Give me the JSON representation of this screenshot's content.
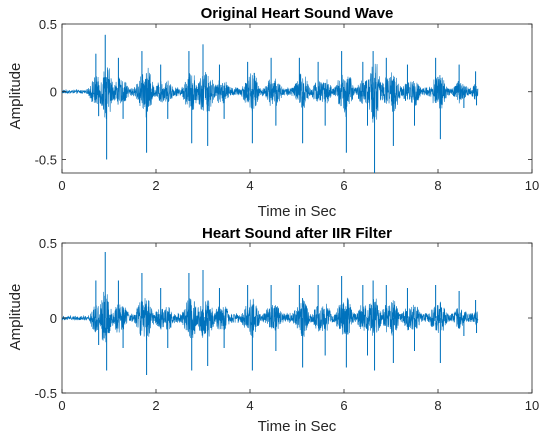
{
  "chart_data": [
    {
      "type": "line",
      "title": "Original Heart Sound Wave",
      "xlabel": "Time in Sec",
      "ylabel": "Amplitude",
      "xlim": [
        0,
        10
      ],
      "ylim": [
        -0.6,
        0.5
      ],
      "xticks": [
        0,
        2,
        4,
        6,
        8,
        10
      ],
      "xtick_labels": [
        "0",
        "2",
        "4",
        "6",
        "8",
        "10"
      ],
      "yticks": [
        -0.5,
        0,
        0.5
      ],
      "ytick_labels": [
        "-0.5",
        "0",
        "0.5"
      ],
      "grid": false,
      "line_color": "#0072BD",
      "signal_end_x": 8.85,
      "peaks": [
        {
          "x": 0.72,
          "y": 0.28
        },
        {
          "x": 0.78,
          "y": -0.18
        },
        {
          "x": 0.92,
          "y": 0.42
        },
        {
          "x": 0.95,
          "y": -0.5
        },
        {
          "x": 1.2,
          "y": 0.25
        },
        {
          "x": 1.3,
          "y": -0.2
        },
        {
          "x": 1.7,
          "y": 0.3
        },
        {
          "x": 1.8,
          "y": -0.45
        },
        {
          "x": 2.1,
          "y": 0.2
        },
        {
          "x": 2.25,
          "y": -0.2
        },
        {
          "x": 2.7,
          "y": 0.3
        },
        {
          "x": 2.76,
          "y": -0.38
        },
        {
          "x": 3.0,
          "y": 0.35
        },
        {
          "x": 3.1,
          "y": -0.4
        },
        {
          "x": 3.35,
          "y": 0.2
        },
        {
          "x": 3.45,
          "y": -0.2
        },
        {
          "x": 3.95,
          "y": 0.22
        },
        {
          "x": 4.05,
          "y": -0.38
        },
        {
          "x": 4.45,
          "y": 0.25
        },
        {
          "x": 4.55,
          "y": -0.25
        },
        {
          "x": 5.05,
          "y": 0.25
        },
        {
          "x": 5.12,
          "y": -0.38
        },
        {
          "x": 5.45,
          "y": 0.22
        },
        {
          "x": 5.6,
          "y": -0.25
        },
        {
          "x": 5.95,
          "y": 0.3
        },
        {
          "x": 6.05,
          "y": -0.45
        },
        {
          "x": 6.4,
          "y": 0.22
        },
        {
          "x": 6.5,
          "y": -0.25
        },
        {
          "x": 6.62,
          "y": 0.3
        },
        {
          "x": 6.65,
          "y": -0.6
        },
        {
          "x": 6.9,
          "y": 0.25
        },
        {
          "x": 7.05,
          "y": -0.4
        },
        {
          "x": 7.35,
          "y": 0.2
        },
        {
          "x": 7.5,
          "y": -0.25
        },
        {
          "x": 7.95,
          "y": 0.25
        },
        {
          "x": 8.05,
          "y": -0.35
        },
        {
          "x": 8.45,
          "y": 0.2
        },
        {
          "x": 8.55,
          "y": -0.12
        },
        {
          "x": 8.8,
          "y": 0.15
        },
        {
          "x": 8.82,
          "y": -0.1
        }
      ]
    },
    {
      "type": "line",
      "title": "Heart Sound after IIR Filter",
      "xlabel": "Time in Sec",
      "ylabel": "Amplitude",
      "xlim": [
        0,
        10
      ],
      "ylim": [
        -0.5,
        0.5
      ],
      "xticks": [
        0,
        2,
        4,
        6,
        8,
        10
      ],
      "xtick_labels": [
        "0",
        "2",
        "4",
        "6",
        "8",
        "10"
      ],
      "yticks": [
        -0.5,
        0,
        0.5
      ],
      "ytick_labels": [
        "-0.5",
        "0",
        "0.5"
      ],
      "grid": false,
      "line_color": "#0072BD",
      "signal_end_x": 8.85,
      "peaks": [
        {
          "x": 0.72,
          "y": 0.25
        },
        {
          "x": 0.78,
          "y": -0.18
        },
        {
          "x": 0.92,
          "y": 0.44
        },
        {
          "x": 0.95,
          "y": -0.35
        },
        {
          "x": 1.2,
          "y": 0.25
        },
        {
          "x": 1.3,
          "y": -0.2
        },
        {
          "x": 1.7,
          "y": 0.3
        },
        {
          "x": 1.8,
          "y": -0.38
        },
        {
          "x": 2.1,
          "y": 0.2
        },
        {
          "x": 2.25,
          "y": -0.2
        },
        {
          "x": 2.7,
          "y": 0.3
        },
        {
          "x": 2.76,
          "y": -0.35
        },
        {
          "x": 3.0,
          "y": 0.32
        },
        {
          "x": 3.1,
          "y": -0.32
        },
        {
          "x": 3.35,
          "y": 0.2
        },
        {
          "x": 3.45,
          "y": -0.2
        },
        {
          "x": 3.95,
          "y": 0.22
        },
        {
          "x": 4.05,
          "y": -0.35
        },
        {
          "x": 4.45,
          "y": 0.22
        },
        {
          "x": 4.55,
          "y": -0.22
        },
        {
          "x": 5.05,
          "y": 0.22
        },
        {
          "x": 5.12,
          "y": -0.33
        },
        {
          "x": 5.45,
          "y": 0.22
        },
        {
          "x": 5.6,
          "y": -0.25
        },
        {
          "x": 5.95,
          "y": 0.28
        },
        {
          "x": 6.05,
          "y": -0.33
        },
        {
          "x": 6.4,
          "y": 0.22
        },
        {
          "x": 6.5,
          "y": -0.25
        },
        {
          "x": 6.62,
          "y": 0.25
        },
        {
          "x": 6.65,
          "y": -0.35
        },
        {
          "x": 6.9,
          "y": 0.22
        },
        {
          "x": 7.05,
          "y": -0.3
        },
        {
          "x": 7.35,
          "y": 0.2
        },
        {
          "x": 7.5,
          "y": -0.22
        },
        {
          "x": 7.95,
          "y": 0.22
        },
        {
          "x": 8.05,
          "y": -0.3
        },
        {
          "x": 8.45,
          "y": 0.18
        },
        {
          "x": 8.55,
          "y": -0.12
        },
        {
          "x": 8.8,
          "y": 0.12
        },
        {
          "x": 8.82,
          "y": -0.1
        }
      ]
    }
  ]
}
